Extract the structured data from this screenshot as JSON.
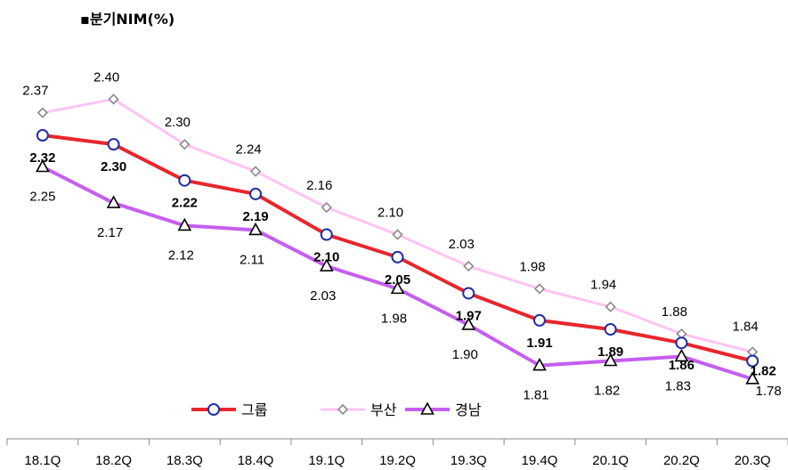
{
  "chart_data": {
    "type": "line",
    "title": "▪분기NIM(%)",
    "categories": [
      "18.1Q",
      "18.2Q",
      "18.3Q",
      "18.4Q",
      "19.1Q",
      "19.2Q",
      "19.3Q",
      "19.4Q",
      "20.1Q",
      "20.2Q",
      "20.3Q"
    ],
    "series": [
      {
        "name": "그룹",
        "color": "#e8262c",
        "marker": "circle",
        "bold_labels": true,
        "values": [
          2.32,
          2.3,
          2.22,
          2.19,
          2.1,
          2.05,
          1.97,
          1.91,
          1.89,
          1.86,
          1.82
        ]
      },
      {
        "name": "부산",
        "color": "#ffc4f2",
        "marker": "diamond",
        "bold_labels": false,
        "values": [
          2.37,
          2.4,
          2.3,
          2.24,
          2.16,
          2.1,
          2.03,
          1.98,
          1.94,
          1.88,
          1.84
        ]
      },
      {
        "name": "경남",
        "color": "#c55ef0",
        "marker": "triangle",
        "bold_labels": false,
        "values": [
          2.25,
          2.17,
          2.12,
          2.11,
          2.03,
          1.98,
          1.9,
          1.81,
          1.82,
          1.83,
          1.78
        ]
      }
    ],
    "legend_position": "bottom-center",
    "grid": false,
    "ylim": [
      1.76,
      2.5
    ]
  }
}
